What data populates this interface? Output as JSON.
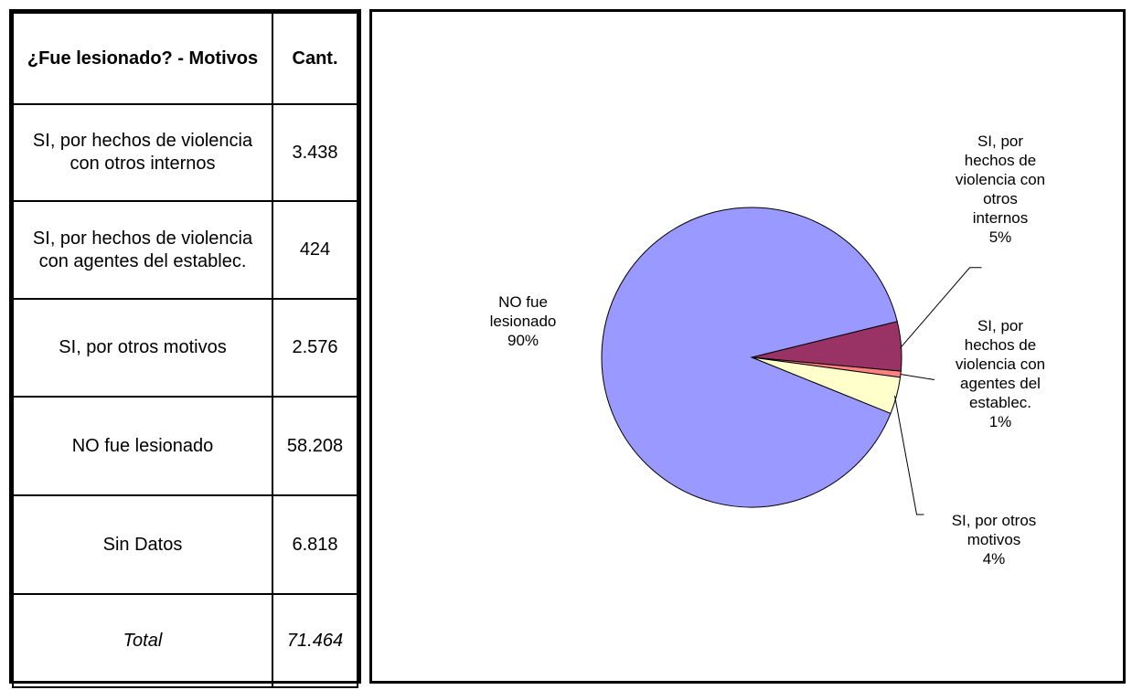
{
  "table": {
    "headers": [
      "¿Fue lesionado? - Motivos",
      "Cant."
    ],
    "rows": [
      {
        "label": "SI, por hechos de violencia con otros internos",
        "value": "3.438"
      },
      {
        "label": "SI, por hechos de violencia con agentes del establec.",
        "value": "424"
      },
      {
        "label": "SI, por otros motivos",
        "value": "2.576"
      },
      {
        "label": "NO fue lesionado",
        "value": "58.208"
      },
      {
        "label": "Sin Datos",
        "value": "6.818"
      }
    ],
    "total": {
      "label": "Total",
      "value": "71.464"
    }
  },
  "chart_data": {
    "type": "pie",
    "slices": [
      {
        "name": "NO fue lesionado",
        "value": 58208,
        "pct_label": "90%",
        "color": "#9999ff"
      },
      {
        "name": "SI, por hechos de violencia con otros internos",
        "value": 3438,
        "pct_label": "5%",
        "color": "#993366"
      },
      {
        "name": "SI, por hechos de violencia con agentes del establec.",
        "value": 424,
        "pct_label": "1%",
        "color": "#ff8080"
      },
      {
        "name": "SI, por otros motivos",
        "value": 2576,
        "pct_label": "4%",
        "color": "#ffffcc"
      }
    ],
    "labels": {
      "no": {
        "lines": [
          "NO fue",
          "lesionado",
          "90%"
        ]
      },
      "otros_internos": {
        "lines": [
          "SI, por",
          "hechos de",
          "violencia con",
          "otros",
          "internos",
          "5%"
        ]
      },
      "agentes": {
        "lines": [
          "SI, por",
          "hechos de",
          "violencia con",
          "agentes del",
          "establec.",
          "1%"
        ]
      },
      "otros_motivos": {
        "lines": [
          "SI, por otros",
          "motivos",
          "4%"
        ]
      }
    }
  }
}
